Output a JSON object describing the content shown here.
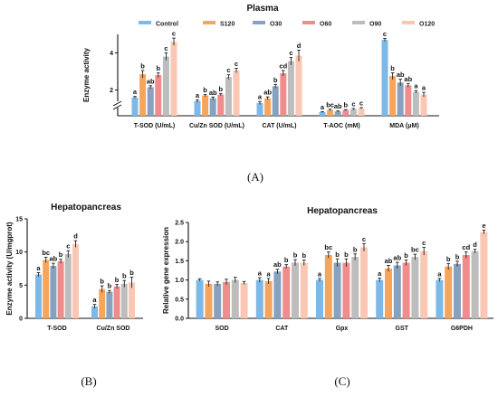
{
  "colors": {
    "Control": "#7cb9e8",
    "S120": "#f5a55c",
    "O30": "#86a2c0",
    "O60": "#f08c8c",
    "O90": "#bdbdbd",
    "O120": "#f9c7b3"
  },
  "legend": [
    "Control",
    "S120",
    "O30",
    "O60",
    "O90",
    "O120"
  ],
  "chart_data": [
    {
      "type": "bar",
      "panel": "(A)",
      "title": "Plasma",
      "ylabel": "Enzyme activity",
      "ylim_display": [
        0,
        5
      ],
      "axis_break": true,
      "yticks": [
        2,
        4
      ],
      "categories": [
        "T-SOD (U/mL)",
        "Cu/Zn SOD (U/mL)",
        "CAT (U/mL)",
        "T-AOC (mM)",
        "MDA (μM)"
      ],
      "series": [
        {
          "name": "Control",
          "values": [
            1.6,
            1.4,
            1.3,
            0.5,
            4.7
          ],
          "errors": [
            0.05,
            0.07,
            0.08,
            0.07,
            0.08
          ],
          "letters": [
            "a",
            "a",
            "a",
            "a",
            "c"
          ]
        },
        {
          "name": "S120",
          "values": [
            2.85,
            1.7,
            1.55,
            0.8,
            2.75
          ],
          "errors": [
            0.2,
            0.05,
            0.08,
            0.1,
            0.18
          ],
          "letters": [
            "b",
            "b",
            "ab",
            "bc",
            "b"
          ]
        },
        {
          "name": "O30",
          "values": [
            2.15,
            1.55,
            2.2,
            0.6,
            2.4
          ],
          "errors": [
            0.08,
            0.07,
            0.1,
            0.07,
            0.18
          ],
          "letters": [
            "ab",
            "ab",
            "b",
            "ab",
            "ab"
          ]
        },
        {
          "name": "O60",
          "values": [
            2.8,
            1.75,
            2.9,
            0.8,
            2.25
          ],
          "errors": [
            0.12,
            0.06,
            0.15,
            0.05,
            0.1
          ],
          "letters": [
            "b",
            "b",
            "cd",
            "b",
            "ab"
          ]
        },
        {
          "name": "O90",
          "values": [
            3.8,
            2.7,
            3.55,
            0.9,
            1.9
          ],
          "errors": [
            0.2,
            0.12,
            0.2,
            0.1,
            0.07
          ],
          "letters": [
            "c",
            "c",
            "c",
            "c",
            "a"
          ]
        },
        {
          "name": "O120",
          "values": [
            4.6,
            3.05,
            3.85,
            1.0,
            1.75
          ],
          "errors": [
            0.2,
            0.12,
            0.3,
            0.05,
            0.12
          ],
          "letters": [
            "c",
            "c",
            "d",
            "c",
            "a"
          ]
        }
      ]
    },
    {
      "type": "bar",
      "panel": "(B)",
      "title": "Hepatopancreas",
      "ylabel": "Enzyme activity (U/mgprot)",
      "ylim": [
        0,
        15
      ],
      "yticks": [
        0,
        5,
        10,
        15
      ],
      "categories": [
        "T-SOD",
        "Cu/Zn SOD"
      ],
      "series": [
        {
          "name": "Control",
          "values": [
            6.6,
            1.8
          ],
          "errors": [
            0.3,
            0.3
          ],
          "letters": [
            "a",
            "a"
          ]
        },
        {
          "name": "S120",
          "values": [
            8.8,
            4.4
          ],
          "errors": [
            0.4,
            0.5
          ],
          "letters": [
            "bc",
            "b"
          ]
        },
        {
          "name": "O30",
          "values": [
            7.9,
            4.0
          ],
          "errors": [
            0.4,
            0.2
          ],
          "letters": [
            "ab",
            "b"
          ]
        },
        {
          "name": "O60",
          "values": [
            8.6,
            4.8
          ],
          "errors": [
            0.3,
            0.3
          ],
          "letters": [
            "b",
            "b"
          ]
        },
        {
          "name": "O90",
          "values": [
            9.7,
            5.2
          ],
          "errors": [
            0.5,
            0.5
          ],
          "letters": [
            "c",
            "b"
          ]
        },
        {
          "name": "O120",
          "values": [
            11.2,
            5.4
          ],
          "errors": [
            0.5,
            0.8
          ],
          "letters": [
            "d",
            "b"
          ]
        }
      ]
    },
    {
      "type": "bar",
      "panel": "(C)",
      "title": "Hepatopancreas",
      "ylabel": "Relative gene expression",
      "ylim": [
        0,
        2.5
      ],
      "yticks": [
        0.0,
        0.5,
        1.0,
        1.5,
        2.0,
        2.5
      ],
      "categories": [
        "SOD",
        "CAT",
        "Gpx",
        "GST",
        "G6PDH"
      ],
      "series": [
        {
          "name": "Control",
          "values": [
            1.0,
            1.0,
            1.0,
            1.0,
            1.0
          ],
          "errors": [
            0.03,
            0.06,
            0.04,
            0.05,
            0.04
          ],
          "letters": [
            "",
            "a",
            "a",
            "a",
            "a"
          ]
        },
        {
          "name": "S120",
          "values": [
            0.9,
            0.97,
            1.65,
            1.3,
            1.35
          ],
          "errors": [
            0.07,
            0.07,
            0.08,
            0.08,
            0.08
          ],
          "letters": [
            "",
            "a",
            "bc",
            "ab",
            "b"
          ]
        },
        {
          "name": "O30",
          "values": [
            0.9,
            1.22,
            1.45,
            1.38,
            1.42
          ],
          "errors": [
            0.05,
            0.06,
            0.1,
            0.08,
            0.07
          ],
          "letters": [
            "",
            "ab",
            "b",
            "ab",
            "b"
          ]
        },
        {
          "name": "O60",
          "values": [
            0.95,
            1.35,
            1.45,
            1.45,
            1.65
          ],
          "errors": [
            0.07,
            0.05,
            0.1,
            0.07,
            0.08
          ],
          "letters": [
            "",
            "b",
            "b",
            "b",
            "cd"
          ]
        },
        {
          "name": "O90",
          "values": [
            1.0,
            1.45,
            1.6,
            1.6,
            1.75
          ],
          "errors": [
            0.07,
            0.08,
            0.08,
            0.07,
            0.05
          ],
          "letters": [
            "",
            "b",
            "b",
            "bc",
            "d"
          ]
        },
        {
          "name": "O120",
          "values": [
            0.92,
            1.45,
            1.85,
            1.75,
            2.25
          ],
          "errors": [
            0.04,
            0.07,
            0.1,
            0.1,
            0.05
          ],
          "letters": [
            "",
            "b",
            "c",
            "c",
            "e"
          ]
        }
      ]
    }
  ]
}
